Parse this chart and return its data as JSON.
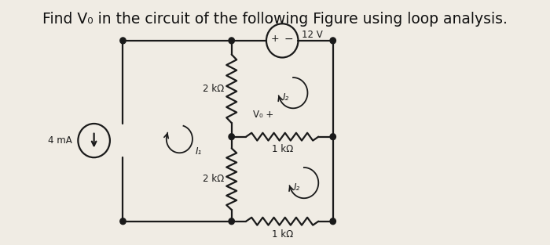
{
  "title": "Find V₀ in the circuit of the following Figure using loop analysis.",
  "bg_color": "#f0ece4",
  "title_fontsize": 13.5,
  "title_color": "#111111",
  "circuit": {
    "current_source_label": "4 mA",
    "I1_label": "I₁",
    "I2_label": "I₂",
    "I2b_label": "I₂",
    "voltage_source_label": "12 V",
    "R1_label": "2 kΩ",
    "R2_label": "1 kΩ",
    "R3_label": "2 kΩ",
    "R4_label": "1 kΩ",
    "Vo_label": "V₀ +"
  }
}
